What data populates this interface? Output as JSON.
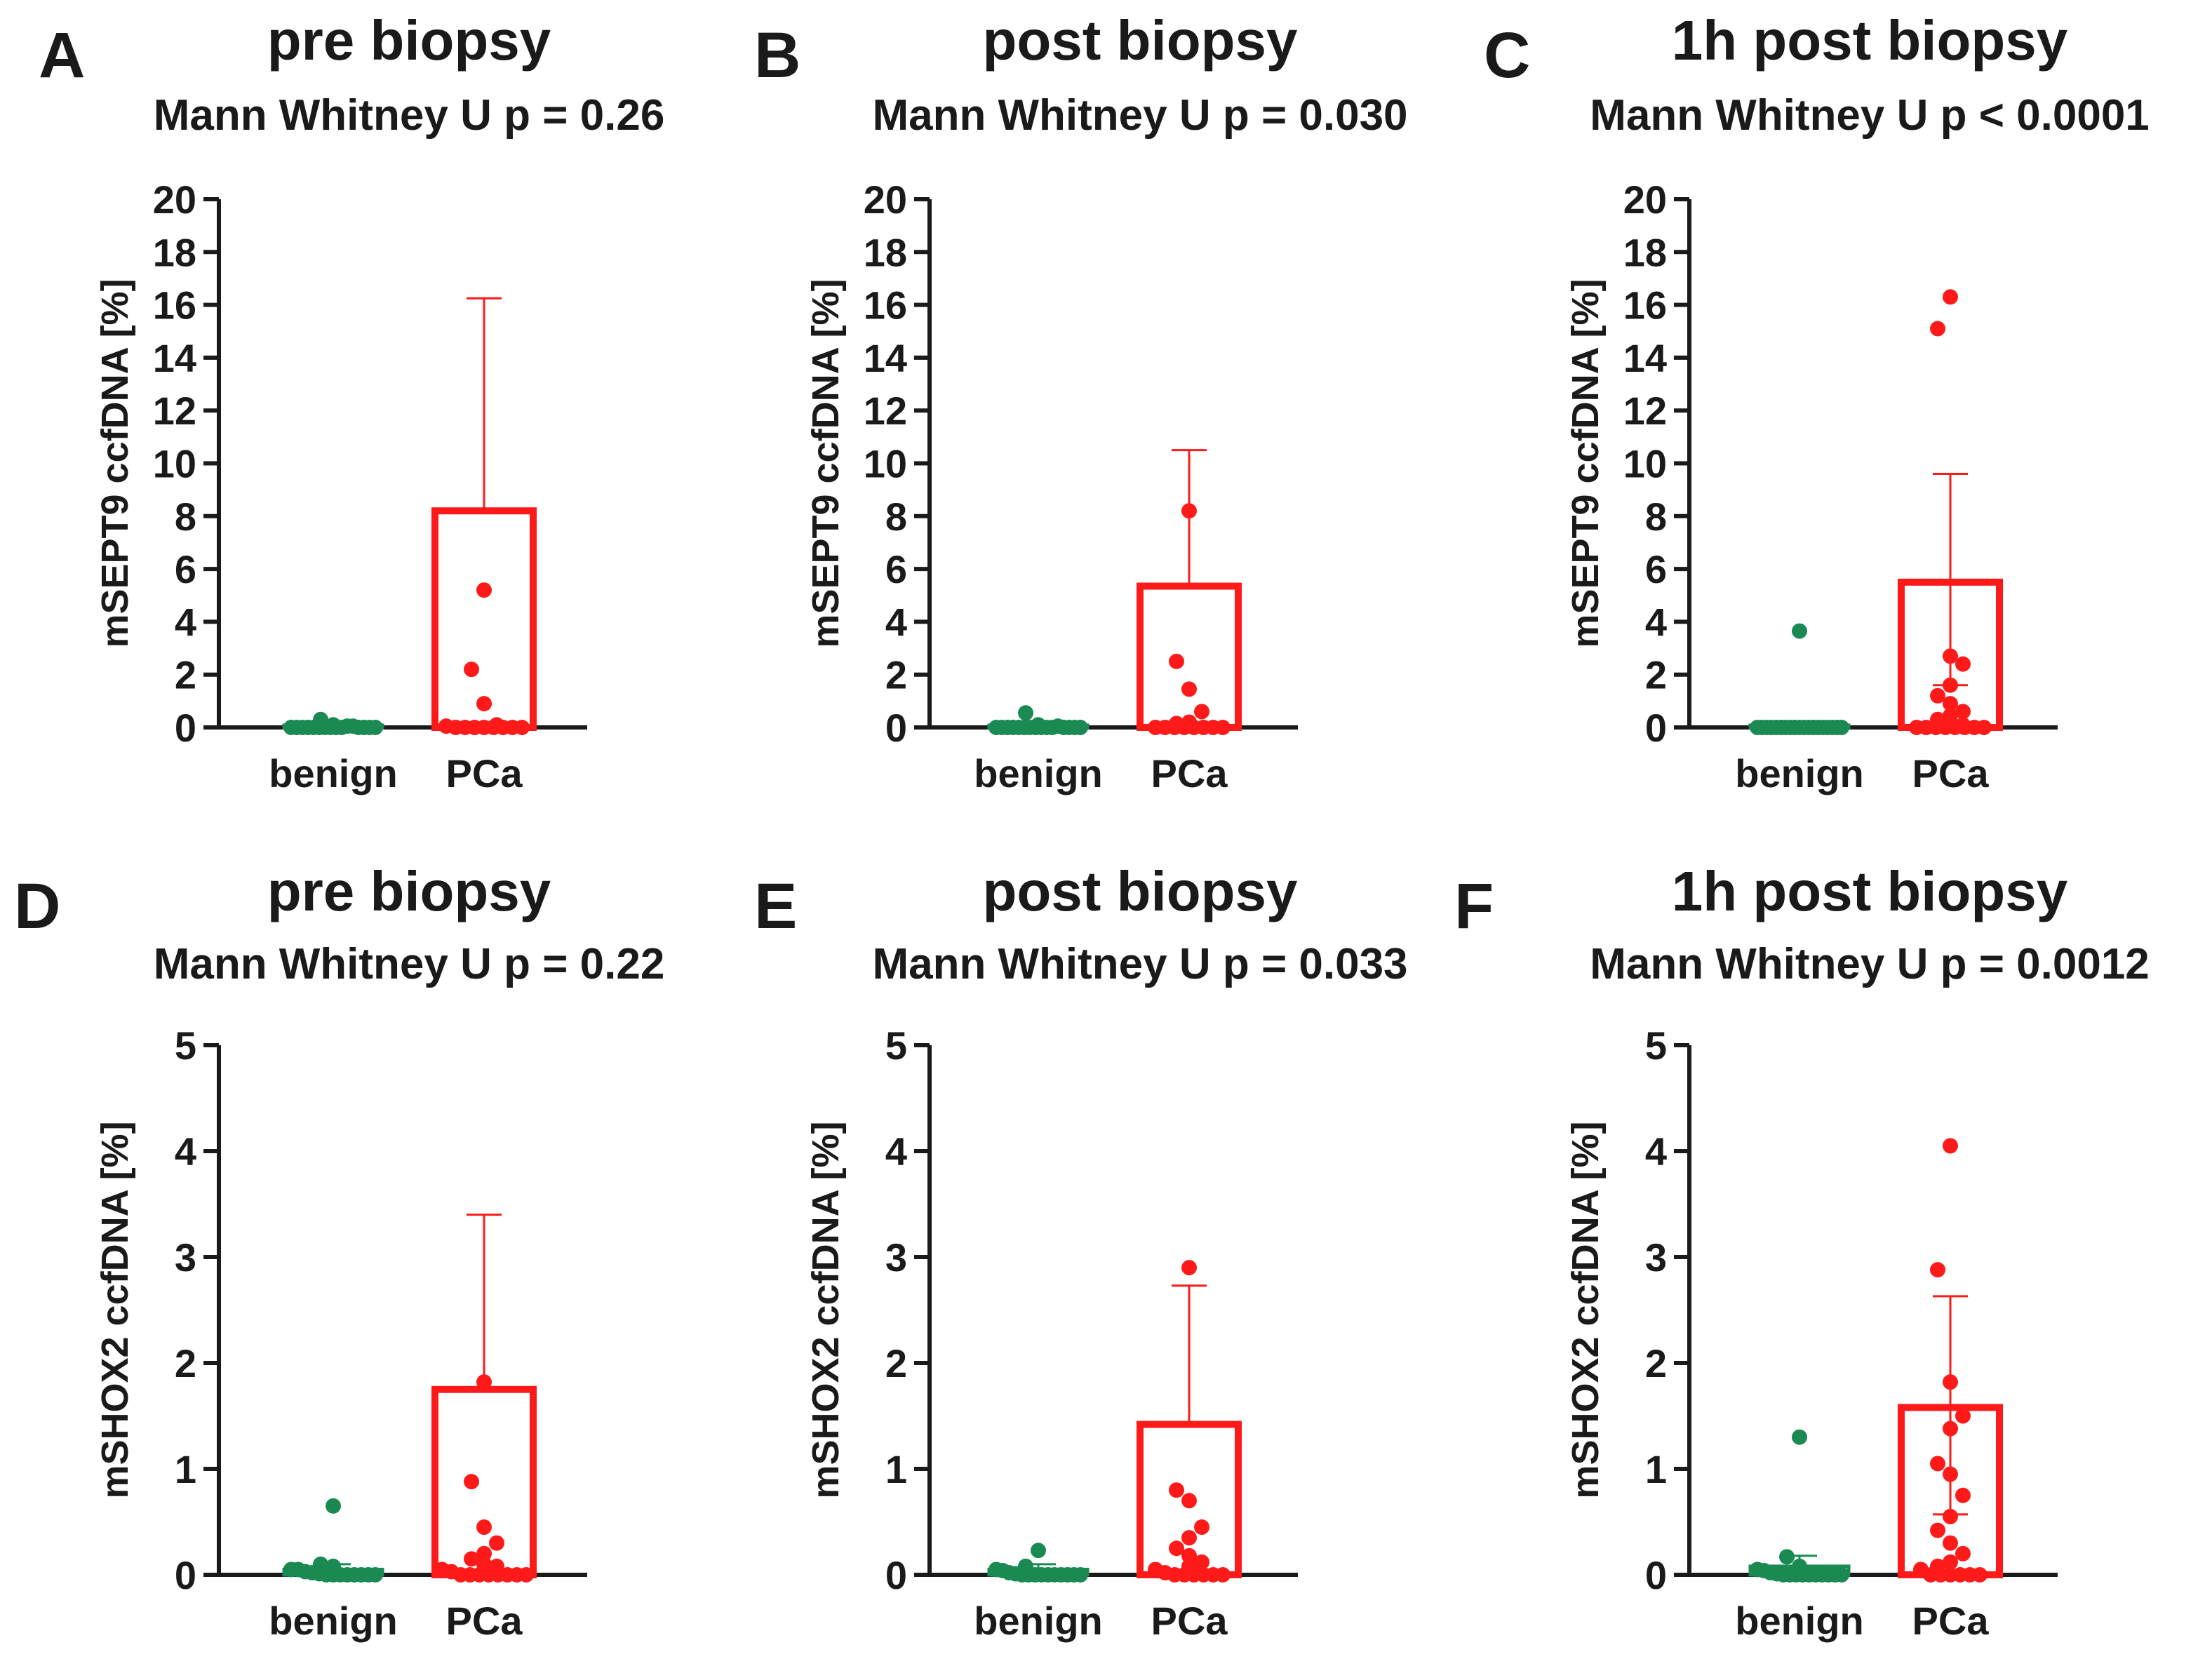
{
  "colors": {
    "benign": "#1a8a52",
    "pca": "#ff1a1a",
    "axis": "#1a1a1a"
  },
  "chart_data": [
    {
      "type": "bar",
      "letter": "A",
      "title": "pre biopsy",
      "subtitle": "Mann Whitney U p = 0.26",
      "ylabel": "mSEPT9 ccfDNA [%]",
      "ylim": [
        0,
        20
      ],
      "yticks": [
        "0",
        "2",
        "4",
        "6",
        "8",
        "10",
        "12",
        "14",
        "16",
        "18",
        "20"
      ],
      "categories": [
        "benign",
        "PCa"
      ],
      "bars": [
        0.05,
        8.2
      ],
      "error_upper": [
        0.1,
        16.25
      ],
      "points": [
        [
          0,
          0,
          0,
          0,
          0,
          0,
          0,
          0,
          0,
          0,
          0.05,
          0.05,
          0.1,
          0.3,
          0,
          0,
          0,
          0
        ],
        [
          5.2,
          2.2,
          0.9,
          0.1,
          0.05,
          0,
          0,
          0,
          0,
          0,
          0,
          0,
          0
        ]
      ]
    },
    {
      "type": "bar",
      "letter": "B",
      "title": "post biopsy",
      "subtitle": "Mann Whitney U p = 0.030",
      "ylabel": "mSEPT9 ccfDNA [%]",
      "ylim": [
        0,
        20
      ],
      "yticks": [
        "0",
        "2",
        "4",
        "6",
        "8",
        "10",
        "12",
        "14",
        "16",
        "18",
        "20"
      ],
      "categories": [
        "benign",
        "PCa"
      ],
      "bars": [
        0.05,
        5.35
      ],
      "error_upper": [
        0.15,
        10.5
      ],
      "points": [
        [
          0,
          0,
          0,
          0,
          0,
          0,
          0,
          0,
          0,
          0,
          0,
          0.05,
          0.1,
          0.55,
          0,
          0,
          0,
          0
        ],
        [
          8.2,
          2.5,
          1.45,
          0.6,
          0.2,
          0.15,
          0.1,
          0,
          0,
          0,
          0,
          0,
          0,
          0,
          0
        ]
      ]
    },
    {
      "type": "bar",
      "letter": "C",
      "title": "1h post biopsy",
      "subtitle": "Mann Whitney U p < 0.0001",
      "ylabel": "mSEPT9 ccfDNA [%]",
      "ylim": [
        0,
        20
      ],
      "yticks": [
        "0",
        "2",
        "4",
        "6",
        "8",
        "10",
        "12",
        "14",
        "16",
        "18",
        "20"
      ],
      "categories": [
        "benign",
        "PCa"
      ],
      "bars": [
        0.05,
        5.5
      ],
      "error_upper": [
        0.1,
        9.6
      ],
      "error_lower": [
        null,
        1.6
      ],
      "points": [
        [
          3.65,
          0,
          0,
          0,
          0,
          0,
          0,
          0,
          0,
          0,
          0,
          0,
          0,
          0,
          0,
          0,
          0,
          0,
          0,
          0
        ],
        [
          16.3,
          15.1,
          2.7,
          2.4,
          1.6,
          1.2,
          0.9,
          0.6,
          0.45,
          0.3,
          0.2,
          0.1,
          0,
          0,
          0,
          0,
          0,
          0,
          0,
          0
        ]
      ]
    },
    {
      "type": "bar",
      "letter": "D",
      "title": "pre biopsy",
      "subtitle": "Mann Whitney U p = 0.22",
      "ylabel": "mSHOX2 ccfDNA [%]",
      "ylim": [
        0,
        5
      ],
      "yticks": [
        "0",
        "1",
        "2",
        "3",
        "4",
        "5"
      ],
      "categories": [
        "benign",
        "PCa"
      ],
      "bars": [
        0.05,
        1.75
      ],
      "error_upper": [
        0.1,
        3.4
      ],
      "points": [
        [
          0.65,
          0.1,
          0.08,
          0.05,
          0.05,
          0.03,
          0.02,
          0.01,
          0,
          0,
          0,
          0,
          0,
          0,
          0,
          0
        ],
        [
          1.82,
          0.88,
          0.45,
          0.3,
          0.2,
          0.15,
          0.1,
          0.08,
          0.05,
          0.03,
          0,
          0,
          0,
          0,
          0,
          0,
          0,
          0
        ]
      ]
    },
    {
      "type": "bar",
      "letter": "E",
      "title": "post biopsy",
      "subtitle": "Mann Whitney U p = 0.033",
      "ylabel": "mSHOX2 ccfDNA [%]",
      "ylim": [
        0,
        5
      ],
      "yticks": [
        "0",
        "1",
        "2",
        "3",
        "4",
        "5"
      ],
      "categories": [
        "benign",
        "PCa"
      ],
      "bars": [
        0.05,
        1.42
      ],
      "error_upper": [
        0.1,
        2.73
      ],
      "points": [
        [
          0.23,
          0.08,
          0.05,
          0.04,
          0.02,
          0.01,
          0,
          0,
          0,
          0,
          0,
          0,
          0,
          0,
          0,
          0
        ],
        [
          2.9,
          0.8,
          0.7,
          0.45,
          0.35,
          0.25,
          0.18,
          0.12,
          0.08,
          0.05,
          0.02,
          0,
          0,
          0,
          0,
          0,
          0
        ]
      ]
    },
    {
      "type": "bar",
      "letter": "F",
      "title": "1h post biopsy",
      "subtitle": "Mann Whitney U p = 0.0012",
      "ylabel": "mSHOX2 ccfDNA [%]",
      "ylim": [
        0,
        5
      ],
      "yticks": [
        "0",
        "1",
        "2",
        "3",
        "4",
        "5"
      ],
      "categories": [
        "benign",
        "PCa"
      ],
      "bars": [
        0.08,
        1.58
      ],
      "error_upper": [
        0.18,
        2.63
      ],
      "error_lower": [
        null,
        0.57
      ],
      "points": [
        [
          1.3,
          0.17,
          0.08,
          0.05,
          0.04,
          0.02,
          0.01,
          0,
          0,
          0,
          0,
          0,
          0,
          0,
          0,
          0,
          0
        ],
        [
          4.05,
          2.88,
          1.82,
          1.5,
          1.38,
          1.05,
          0.95,
          0.75,
          0.55,
          0.42,
          0.3,
          0.2,
          0.12,
          0.08,
          0.05,
          0,
          0,
          0,
          0,
          0,
          0
        ]
      ]
    }
  ]
}
